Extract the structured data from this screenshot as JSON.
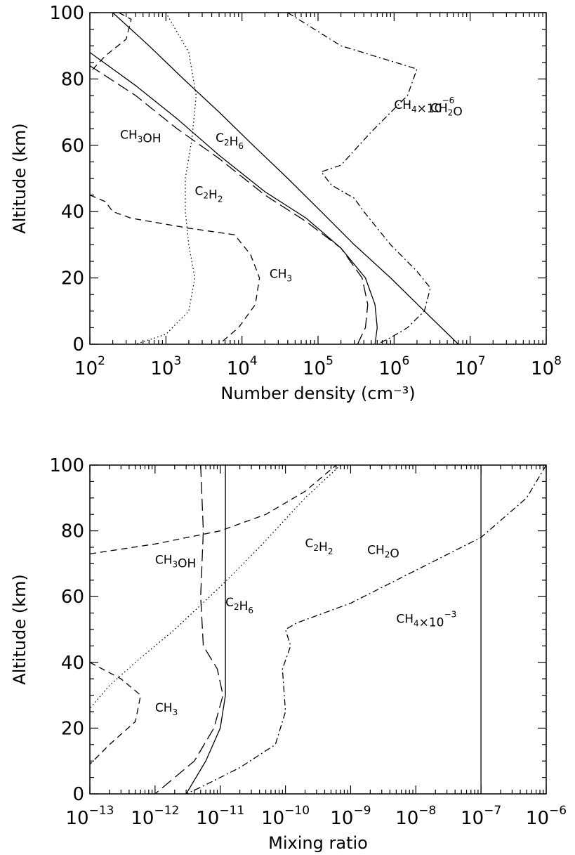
{
  "chart_data": [
    {
      "type": "line",
      "xlabel": "Number density (cm⁻³)",
      "ylabel": "Altitude (km)",
      "xscale": "log",
      "xlim": [
        100,
        100000000
      ],
      "ylim": [
        0,
        100
      ],
      "yticks": [
        "0",
        "20",
        "40",
        "60",
        "80",
        "100"
      ],
      "xticks": [
        {
          "base": "10",
          "exp": "2"
        },
        {
          "base": "10",
          "exp": "3"
        },
        {
          "base": "10",
          "exp": "4"
        },
        {
          "base": "10",
          "exp": "5"
        },
        {
          "base": "10",
          "exp": "6"
        },
        {
          "base": "10",
          "exp": "7"
        },
        {
          "base": "10",
          "exp": "8"
        }
      ],
      "grid": false,
      "series": [
        {
          "name": "CH4×10⁻⁶",
          "label_parts": [
            [
              "CH",
              "",
              ""
            ],
            [
              "4",
              "sub",
              ""
            ],
            [
              "×10",
              "",
              ""
            ],
            [
              "−6",
              "sup",
              ""
            ]
          ],
          "label_at": {
            "x": 1000000,
            "y": 71
          },
          "style": "solid",
          "points": [
            [
              200,
              100
            ],
            [
              600,
              90
            ],
            [
              1700,
              80
            ],
            [
              5000,
              70
            ],
            [
              14000,
              60
            ],
            [
              40000,
              50
            ],
            [
              110000,
              40
            ],
            [
              300000,
              30
            ],
            [
              900000,
              20
            ],
            [
              2500000,
              10
            ],
            [
              7000000,
              0
            ]
          ]
        },
        {
          "name": "CH2O",
          "label_parts": [
            [
              "CH",
              "",
              ""
            ],
            [
              "2",
              "sub",
              ""
            ],
            [
              "O",
              "",
              ""
            ]
          ],
          "label_at": {
            "x": 3000000,
            "y": 70
          },
          "style": "dashdot",
          "points": [
            [
              40000,
              100
            ],
            [
              200000,
              90
            ],
            [
              2000000,
              83
            ],
            [
              1500000,
              75
            ],
            [
              500000,
              64
            ],
            [
              200000,
              54
            ],
            [
              110000,
              52
            ],
            [
              150000,
              48
            ],
            [
              300000,
              44
            ],
            [
              400000,
              40
            ],
            [
              900000,
              30
            ],
            [
              2000000,
              22
            ],
            [
              3000000,
              17
            ],
            [
              2500000,
              10
            ],
            [
              1500000,
              5
            ],
            [
              900000,
              2
            ],
            [
              600000,
              0
            ]
          ]
        },
        {
          "name": "C2H6",
          "label_parts": [
            [
              "C",
              "",
              ""
            ],
            [
              "2",
              "sub",
              ""
            ],
            [
              "H",
              "",
              ""
            ],
            [
              "6",
              "sub",
              ""
            ]
          ],
          "label_at": {
            "x": 4500,
            "y": 61
          },
          "style": "solid",
          "points": [
            [
              100,
              88
            ],
            [
              400,
              78
            ],
            [
              1400,
              68
            ],
            [
              5000,
              57
            ],
            [
              20000,
              46
            ],
            [
              70000,
              38
            ],
            [
              200000,
              29
            ],
            [
              420000,
              20
            ],
            [
              560000,
              12
            ],
            [
              600000,
              5
            ],
            [
              560000,
              0
            ]
          ]
        },
        {
          "name": "CH3OH",
          "label_parts": [
            [
              "CH",
              "",
              ""
            ],
            [
              "3",
              "sub",
              ""
            ],
            [
              "OH",
              "",
              ""
            ]
          ],
          "label_at": {
            "x": 250,
            "y": 62
          },
          "style": "longdash",
          "points": [
            [
              100,
              84
            ],
            [
              400,
              75
            ],
            [
              1400,
              65
            ],
            [
              5000,
              56
            ],
            [
              20000,
              45
            ],
            [
              70000,
              37
            ],
            [
              200000,
              29
            ],
            [
              380000,
              20
            ],
            [
              450000,
              12
            ],
            [
              420000,
              5
            ],
            [
              330000,
              0
            ]
          ]
        },
        {
          "name": "C2H2",
          "label_parts": [
            [
              "C",
              "",
              ""
            ],
            [
              "2",
              "sub",
              ""
            ],
            [
              "H",
              "",
              ""
            ],
            [
              "2",
              "sub",
              ""
            ]
          ],
          "label_at": {
            "x": 2400,
            "y": 45
          },
          "style": "dotted",
          "points": [
            [
              1000,
              100
            ],
            [
              2000,
              88
            ],
            [
              2500,
              75
            ],
            [
              2200,
              62
            ],
            [
              1800,
              50
            ],
            [
              1800,
              40
            ],
            [
              2000,
              30
            ],
            [
              2400,
              20
            ],
            [
              2000,
              10
            ],
            [
              1000,
              3
            ],
            [
              400,
              0
            ]
          ]
        },
        {
          "name": "CH3",
          "label_parts": [
            [
              "CH",
              "",
              ""
            ],
            [
              "3",
              "sub",
              ""
            ]
          ],
          "label_at": {
            "x": 23000,
            "y": 20
          },
          "style": "dashed",
          "points": [
            [
              100,
              45
            ],
            [
              160,
              43
            ],
            [
              200,
              40
            ],
            [
              350,
              38
            ],
            [
              2000,
              35
            ],
            [
              8000,
              33
            ],
            [
              13000,
              27
            ],
            [
              17000,
              20
            ],
            [
              15000,
              12
            ],
            [
              9000,
              5
            ],
            [
              5000,
              0
            ]
          ],
          "points_top": [
            [
              240,
              100
            ],
            [
              350,
              98
            ],
            [
              300,
              92
            ],
            [
              160,
              87
            ],
            [
              100,
              82
            ]
          ]
        }
      ]
    },
    {
      "type": "line",
      "xlabel": "Mixing ratio",
      "ylabel": "Altitude (km)",
      "xscale": "log",
      "xlim": [
        1e-13,
        1e-06
      ],
      "ylim": [
        0,
        100
      ],
      "yticks": [
        "0",
        "20",
        "40",
        "60",
        "80",
        "100"
      ],
      "xticks": [
        {
          "base": "10",
          "exp": "−13"
        },
        {
          "base": "10",
          "exp": "−12"
        },
        {
          "base": "10",
          "exp": "−11"
        },
        {
          "base": "10",
          "exp": "−10"
        },
        {
          "base": "10",
          "exp": "−9"
        },
        {
          "base": "10",
          "exp": "−8"
        },
        {
          "base": "10",
          "exp": "−7"
        },
        {
          "base": "10",
          "exp": "−6"
        }
      ],
      "grid": false,
      "series": [
        {
          "name": "CH4×10⁻³",
          "label_parts": [
            [
              "CH",
              "",
              ""
            ],
            [
              "4",
              "sub",
              ""
            ],
            [
              "×10",
              "",
              ""
            ],
            [
              "−3",
              "sup",
              ""
            ]
          ],
          "label_at": {
            "x": 5e-09,
            "y": 52
          },
          "style": "solid",
          "points": [
            [
              1e-07,
              100
            ],
            [
              1e-07,
              0
            ]
          ]
        },
        {
          "name": "CH2O",
          "label_parts": [
            [
              "CH",
              "",
              ""
            ],
            [
              "2",
              "sub",
              ""
            ],
            [
              "O",
              "",
              ""
            ]
          ],
          "label_at": {
            "x": 1.8e-09,
            "y": 73
          },
          "style": "dashdot",
          "points": [
            [
              1e-06,
              100
            ],
            [
              5e-07,
              90
            ],
            [
              1e-07,
              78
            ],
            [
              1e-08,
              68
            ],
            [
              1e-09,
              58
            ],
            [
              1.5e-10,
              52
            ],
            [
              1e-10,
              50
            ],
            [
              1.2e-10,
              45
            ],
            [
              9e-11,
              38
            ],
            [
              1e-10,
              25
            ],
            [
              7e-11,
              15
            ],
            [
              2e-11,
              8
            ],
            [
              5e-12,
              2
            ],
            [
              3e-12,
              0
            ]
          ]
        },
        {
          "name": "C2H6",
          "label_parts": [
            [
              "C",
              "",
              ""
            ],
            [
              "2",
              "sub",
              ""
            ],
            [
              "H",
              "",
              ""
            ],
            [
              "6",
              "sub",
              ""
            ]
          ],
          "label_at": {
            "x": 1.2e-11,
            "y": 57
          },
          "style": "solid",
          "points": [
            [
              1.2e-11,
              100
            ],
            [
              1.2e-11,
              40
            ],
            [
              1.2e-11,
              30
            ],
            [
              1e-11,
              20
            ],
            [
              6e-12,
              10
            ],
            [
              3e-12,
              0
            ]
          ]
        },
        {
          "name": "CH3OH",
          "label_parts": [
            [
              "CH",
              "",
              ""
            ],
            [
              "3",
              "sub",
              ""
            ],
            [
              "OH",
              "",
              ""
            ]
          ],
          "label_at": {
            "x": 1e-12,
            "y": 70
          },
          "style": "longdash",
          "points": [
            [
              5e-12,
              100
            ],
            [
              5.5e-12,
              80
            ],
            [
              5e-12,
              60
            ],
            [
              5.5e-12,
              45
            ],
            [
              9e-12,
              38
            ],
            [
              1.1e-11,
              30
            ],
            [
              8e-12,
              20
            ],
            [
              4e-12,
              10
            ],
            [
              1e-12,
              0
            ]
          ]
        },
        {
          "name": "C2H2",
          "label_parts": [
            [
              "C",
              "",
              ""
            ],
            [
              "2",
              "sub",
              ""
            ],
            [
              "H",
              "",
              ""
            ],
            [
              "2",
              "sub",
              ""
            ]
          ],
          "label_at": {
            "x": 2e-10,
            "y": 75
          },
          "style": "dotted",
          "points": [
            [
              7e-10,
              100
            ],
            [
              2e-10,
              90
            ],
            [
              4e-11,
              75
            ],
            [
              1e-11,
              63
            ],
            [
              2e-12,
              50
            ],
            [
              5e-13,
              40
            ],
            [
              2e-13,
              33
            ],
            [
              1e-13,
              26
            ]
          ]
        },
        {
          "name": "CH3",
          "label_parts": [
            [
              "CH",
              "",
              ""
            ],
            [
              "3",
              "sub",
              ""
            ]
          ],
          "label_at": {
            "x": 1e-12,
            "y": 25
          },
          "style": "dashed",
          "points": [
            [
              1e-13,
              73
            ],
            [
              1e-12,
              76
            ],
            [
              1e-11,
              80
            ],
            [
              5e-11,
              85
            ],
            [
              2e-10,
              92
            ],
            [
              6e-10,
              100
            ]
          ],
          "points_low": [
            [
              1e-13,
              40
            ],
            [
              3e-13,
              35
            ],
            [
              6e-13,
              30
            ],
            [
              5e-13,
              22
            ],
            [
              2e-13,
              15
            ],
            [
              1e-13,
              9
            ]
          ]
        }
      ]
    }
  ]
}
